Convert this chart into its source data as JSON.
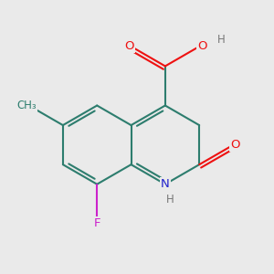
{
  "bg_color": "#eaeaea",
  "bond_color": "#2d7d6e",
  "bond_width": 1.5,
  "atom_colors": {
    "O": "#ee1111",
    "N": "#2222cc",
    "F": "#cc22cc",
    "C": "#2d7d6e",
    "H": "#777777"
  },
  "dbo": 0.09,
  "shrink": 0.12
}
